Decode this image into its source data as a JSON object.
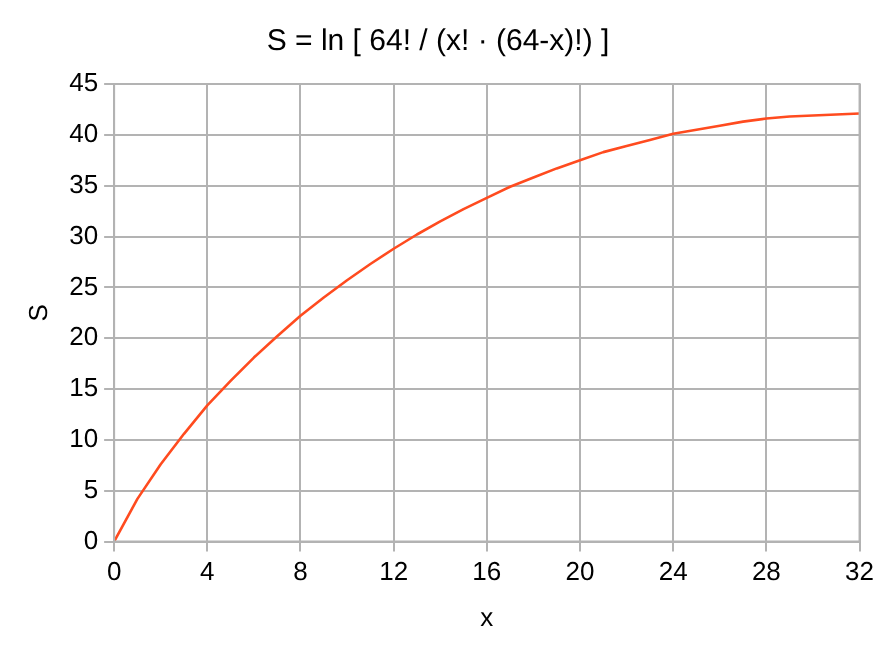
{
  "chart_data": {
    "type": "line",
    "title": "S = ln [ 64! / (x! · (64-x)!) ]",
    "xlabel": "x",
    "ylabel": "S",
    "x": [
      0,
      1,
      2,
      3,
      4,
      5,
      6,
      7,
      8,
      9,
      10,
      11,
      12,
      13,
      14,
      15,
      16,
      17,
      18,
      19,
      20,
      21,
      22,
      23,
      24,
      25,
      26,
      27,
      28,
      29,
      30,
      31,
      32
    ],
    "series": [
      {
        "color": "#ff4b1f",
        "values": [
          0,
          4.2,
          7.6,
          10.6,
          13.4,
          15.8,
          18.1,
          20.2,
          22.2,
          24.0,
          25.7,
          27.3,
          28.8,
          30.2,
          31.5,
          32.7,
          33.8,
          34.9,
          35.8,
          36.7,
          37.5,
          38.3,
          38.9,
          39.5,
          40.1,
          40.5,
          40.9,
          41.3,
          41.6,
          41.8,
          41.9,
          42.0,
          42.1
        ]
      }
    ],
    "xlim": [
      0,
      32
    ],
    "xticks": [
      0,
      4,
      8,
      12,
      16,
      20,
      24,
      28,
      32
    ],
    "ylim": [
      0,
      45
    ],
    "yticks": [
      0,
      5,
      10,
      15,
      20,
      25,
      30,
      35,
      40,
      45
    ],
    "grid": true,
    "legend": false,
    "marker": "none",
    "line_style": "solid"
  }
}
